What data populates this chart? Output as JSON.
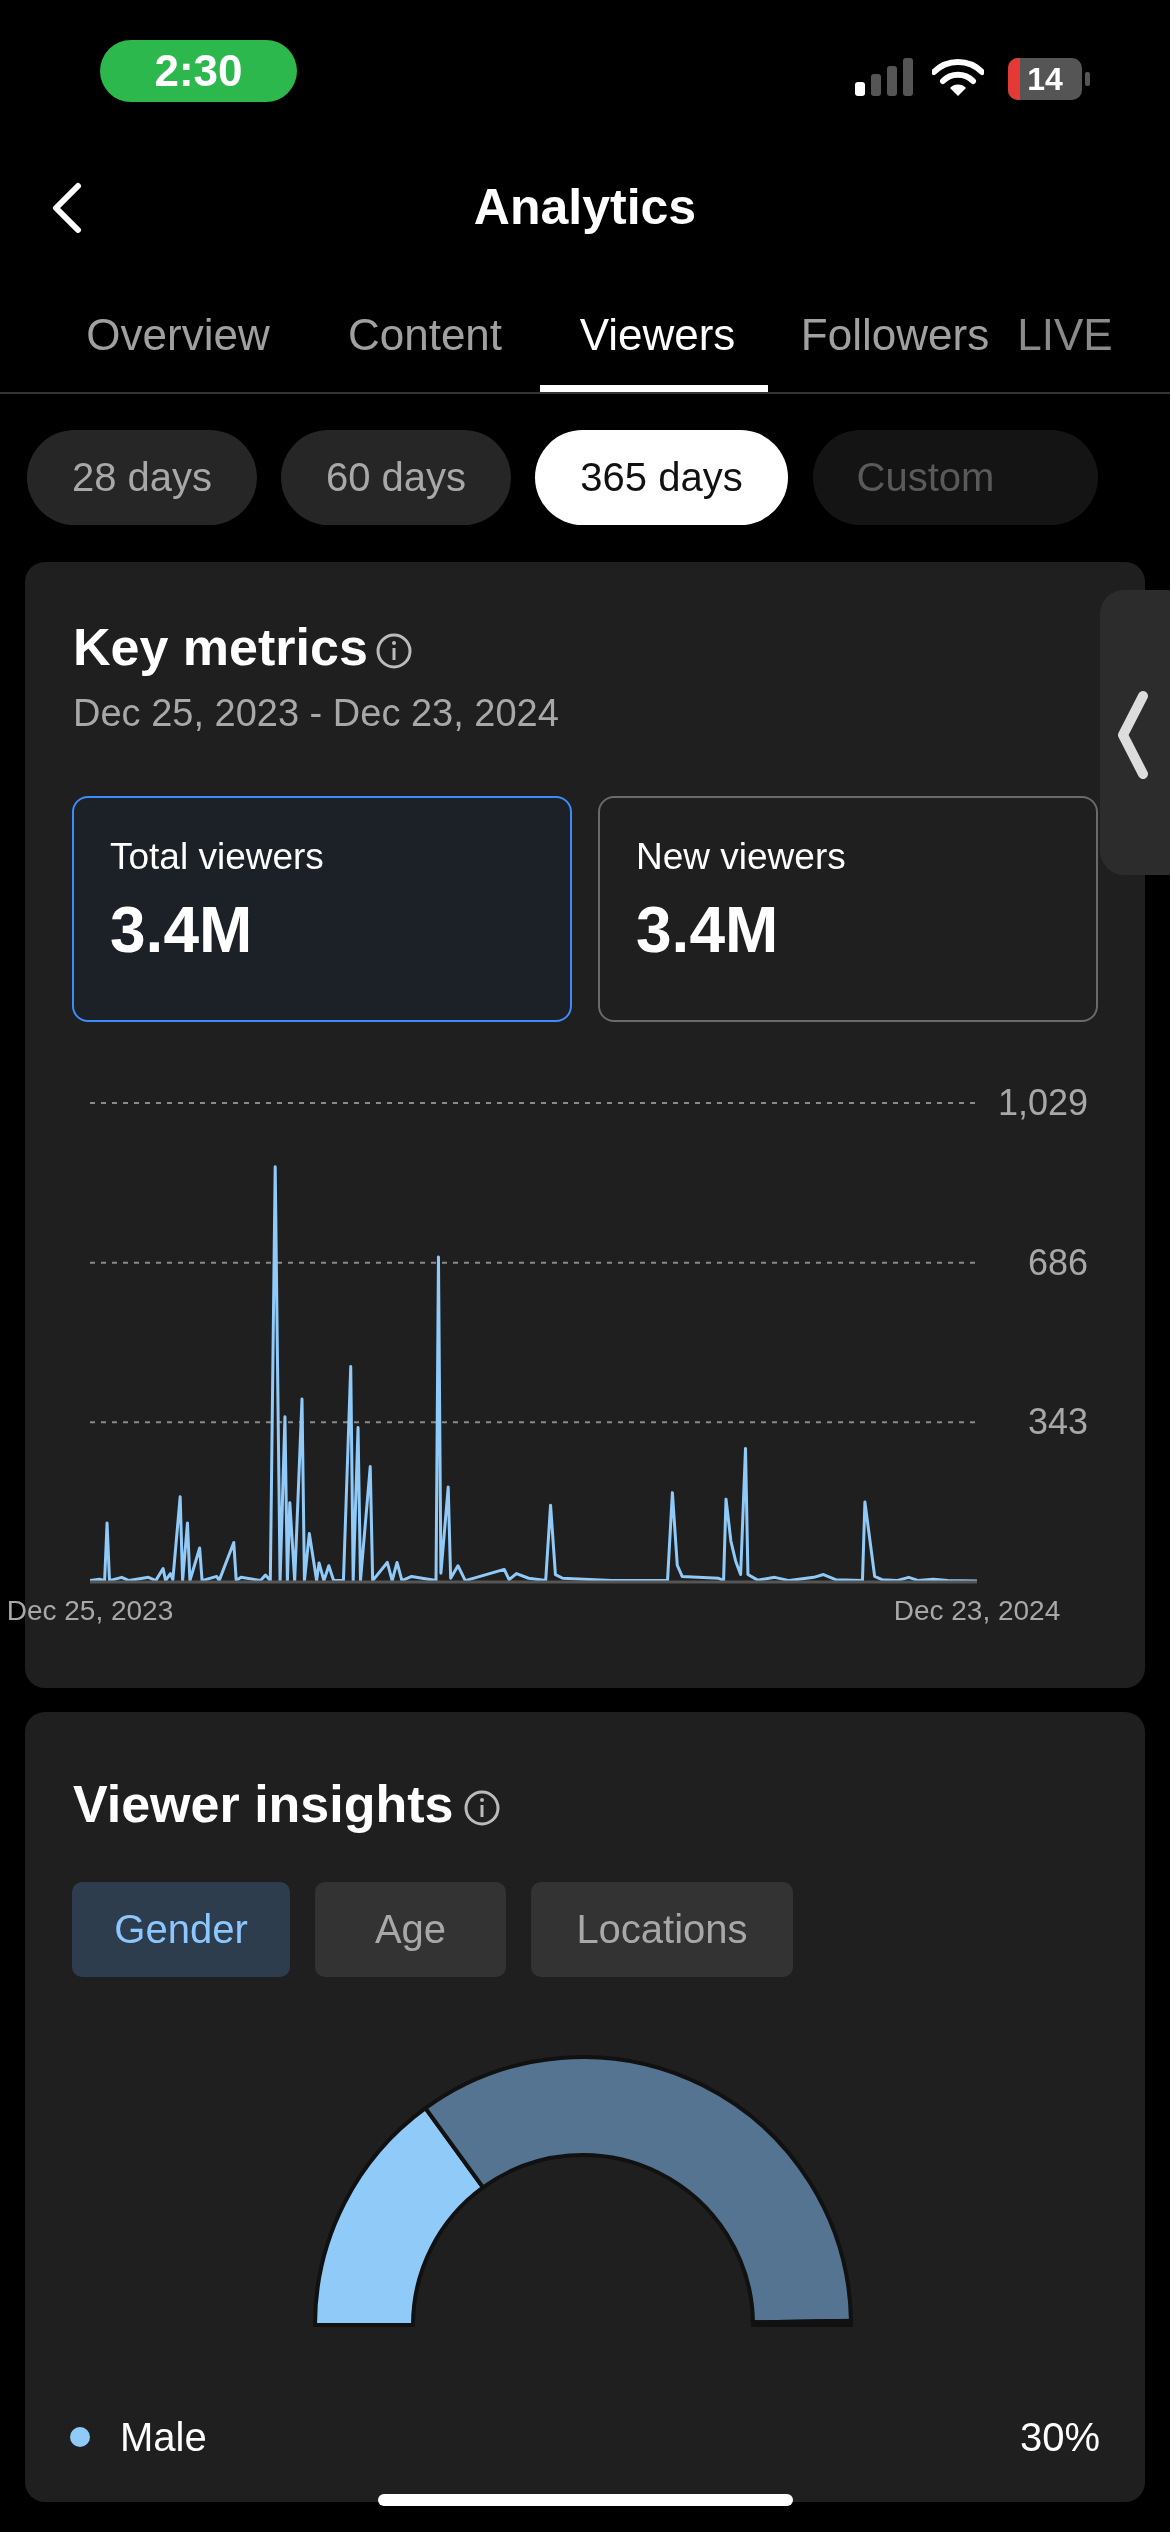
{
  "chart_data": [
    {
      "type": "line",
      "title": "Key metrics",
      "subtitle": "Dec 25, 2023 - Dec 23, 2024",
      "annotations": [
        "2:30",
        "14",
        "Analytics",
        "Overview",
        "Content",
        "Viewers",
        "Followers",
        "LIVE",
        "28 days",
        "60 days",
        "365 days",
        "Custom",
        "Total viewers",
        "3.4M",
        "New viewers",
        "3.4M"
      ],
      "x": [
        "2023-12-25",
        "2023-12-29",
        "2023-12-31",
        "2024-01-01",
        "2024-01-02",
        "2024-01-07",
        "2024-01-10",
        "2024-01-18",
        "2024-01-21",
        "2024-01-24",
        "2024-01-25",
        "2024-01-27",
        "2024-01-28",
        "2024-01-31",
        "2024-02-01",
        "2024-02-03",
        "2024-02-04",
        "2024-02-08",
        "2024-02-09",
        "2024-02-15",
        "2024-02-16",
        "2024-02-22",
        "2024-02-23",
        "2024-02-25",
        "2024-03-04",
        "2024-03-06",
        "2024-03-08",
        "2024-03-10",
        "2024-03-12",
        "2024-03-14",
        "2024-03-15",
        "2024-03-16",
        "2024-03-18",
        "2024-03-21",
        "2024-03-22",
        "2024-03-24",
        "2024-03-27",
        "2024-03-28",
        "2024-03-30",
        "2024-04-01",
        "2024-04-03",
        "2024-04-07",
        "2024-04-10",
        "2024-04-11",
        "2024-04-13",
        "2024-04-14",
        "2024-04-18",
        "2024-04-19",
        "2024-04-25",
        "2024-04-27",
        "2024-04-29",
        "2024-05-01",
        "2024-05-05",
        "2024-05-15",
        "2024-05-16",
        "2024-05-17",
        "2024-05-20",
        "2024-05-21",
        "2024-05-24",
        "2024-05-27",
        "2024-06-12",
        "2024-06-14",
        "2024-06-17",
        "2024-06-22",
        "2024-06-29",
        "2024-07-01",
        "2024-07-03",
        "2024-07-06",
        "2024-07-26",
        "2024-08-18",
        "2024-08-20",
        "2024-08-22",
        "2024-08-24",
        "2024-09-08",
        "2024-09-10",
        "2024-09-11",
        "2024-09-13",
        "2024-09-15",
        "2024-09-17",
        "2024-09-19",
        "2024-09-20",
        "2024-09-24",
        "2024-10-01",
        "2024-10-07",
        "2024-10-17",
        "2024-10-21",
        "2024-10-26",
        "2024-11-06",
        "2024-11-07",
        "2024-11-11",
        "2024-11-14",
        "2024-11-20",
        "2024-11-25",
        "2024-11-29",
        "2024-12-05",
        "2024-12-11",
        "2024-12-23"
      ],
      "series": [
        {
          "color": "#90caf9",
          "values": [
            3,
            6,
            3,
            127,
            3,
            10,
            3,
            10,
            3,
            29,
            3,
            18,
            5,
            183,
            3,
            127,
            3,
            73,
            3,
            12,
            3,
            85,
            3,
            10,
            3,
            15,
            3,
            892,
            3,
            355,
            3,
            170,
            3,
            393,
            3,
            104,
            3,
            41,
            3,
            35,
            3,
            3,
            463,
            3,
            332,
            3,
            248,
            3,
            42,
            3,
            42,
            3,
            12,
            3,
            698,
            19,
            204,
            8,
            35,
            3,
            27,
            5,
            18,
            8,
            3,
            165,
            16,
            8,
            3,
            3,
            192,
            36,
            12,
            8,
            3,
            178,
            88,
            44,
            16,
            287,
            16,
            4,
            10,
            3,
            10,
            16,
            5,
            3,
            172,
            12,
            5,
            3,
            10,
            3,
            6,
            3,
            2
          ]
        }
      ],
      "xlim": [
        "2023-12-25",
        "2024-12-23"
      ],
      "xticks": [
        {
          "value": "2023-12-25",
          "label": "Dec 25, 2023"
        },
        {
          "value": "2024-12-23",
          "label": "Dec 23, 2024"
        }
      ],
      "ylim": [
        0,
        1029
      ],
      "yticks": [
        343,
        686,
        {
          "value": 1029,
          "label": "1,029"
        }
      ],
      "grid": "y",
      "marker": "none",
      "line_style": "solid"
    },
    {
      "type": "donut",
      "title": "Viewer insights",
      "annotations": [
        "Gender",
        "Age",
        "Locations"
      ],
      "categories": [
        "Male",
        null,
        null
      ],
      "values": [
        30,
        69.5,
        0.5
      ],
      "colors": [
        "#90caf9",
        "#557491",
        "#557491"
      ],
      "value_labels": [
        "30%",
        null,
        null
      ],
      "legend": "bottom"
    }
  ]
}
